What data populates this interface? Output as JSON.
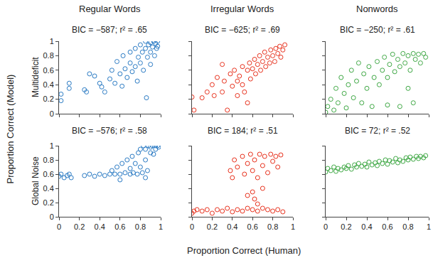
{
  "column_titles": [
    "Regular Words",
    "Irregular Words",
    "Nonwords"
  ],
  "row_titles": [
    "Multideficit",
    "Global Noise"
  ],
  "xlabel": "Proportion Correct (Human)",
  "ylabel": "Proportion Correct (Model)",
  "chart_data": [
    {
      "type": "scatter",
      "title": "BIC = −587; r² = .65",
      "color": "#2b7bc4",
      "marker": "circle-open",
      "tick_labels": "y",
      "xlim": [
        0,
        1
      ],
      "ylim": [
        0,
        1
      ],
      "xticks": [
        0,
        0.2,
        0.4,
        0.6,
        0.8,
        1
      ],
      "yticks": [
        0,
        0.2,
        0.4,
        0.6,
        0.8,
        1
      ],
      "x": [
        0.02,
        0.02,
        0.1,
        0.1,
        0.25,
        0.27,
        0.3,
        0.35,
        0.4,
        0.42,
        0.45,
        0.5,
        0.52,
        0.55,
        0.57,
        0.6,
        0.62,
        0.63,
        0.65,
        0.67,
        0.7,
        0.7,
        0.72,
        0.75,
        0.75,
        0.77,
        0.78,
        0.8,
        0.8,
        0.82,
        0.83,
        0.85,
        0.85,
        0.86,
        0.87,
        0.88,
        0.9,
        0.9,
        0.9,
        0.92,
        0.93,
        0.94,
        0.95,
        0.96,
        0.97,
        0.97
      ],
      "values": [
        0.27,
        0.18,
        0.42,
        0.35,
        0.33,
        0.3,
        0.55,
        0.52,
        0.42,
        0.37,
        0.3,
        0.48,
        0.6,
        0.42,
        0.72,
        0.55,
        0.38,
        0.8,
        0.62,
        0.5,
        0.7,
        0.85,
        0.58,
        0.9,
        0.65,
        0.45,
        0.78,
        0.95,
        0.7,
        0.85,
        0.6,
        1,
        0.9,
        0.22,
        0.78,
        0.95,
        0.98,
        0.85,
        0.68,
        0.92,
        1,
        0.8,
        0.97,
        0.9,
        1,
        0.93
      ]
    },
    {
      "type": "scatter",
      "title": "BIC = −625; r² = .69",
      "color": "#e8321e",
      "marker": "circle-open",
      "tick_labels": false,
      "xlim": [
        0,
        1
      ],
      "ylim": [
        0,
        1
      ],
      "xticks": [
        0,
        0.2,
        0.4,
        0.6,
        0.8,
        1
      ],
      "yticks": [
        0,
        0.2,
        0.4,
        0.6,
        0.8,
        1
      ],
      "x": [
        0,
        0.02,
        0.1,
        0.15,
        0.2,
        0.22,
        0.25,
        0.3,
        0.32,
        0.35,
        0.38,
        0.4,
        0.42,
        0.45,
        0.47,
        0.5,
        0.5,
        0.52,
        0.55,
        0.57,
        0.58,
        0.6,
        0.62,
        0.63,
        0.65,
        0.67,
        0.68,
        0.7,
        0.72,
        0.73,
        0.75,
        0.77,
        0.78,
        0.8,
        0.82,
        0.83,
        0.85,
        0.87,
        0.88,
        0.9,
        0.92,
        0.3,
        0.55,
        0.45
      ],
      "values": [
        0.23,
        0.05,
        0.22,
        0.3,
        0.4,
        0.25,
        0.5,
        0.3,
        0.45,
        0.05,
        0.55,
        0.38,
        0.6,
        0.45,
        0.52,
        0.65,
        0.4,
        0.3,
        0.6,
        0.7,
        0.48,
        0.62,
        0.75,
        0.55,
        0.68,
        0.8,
        0.6,
        0.72,
        0.85,
        0.65,
        0.78,
        0.7,
        0.88,
        0.8,
        0.72,
        0.9,
        0.83,
        0.93,
        0.78,
        0.88,
        0.95,
        0.68,
        0.15,
        0.25
      ]
    },
    {
      "type": "scatter",
      "title": "BIC = −250; r² = .61",
      "color": "#3fa845",
      "marker": "circle-open",
      "tick_labels": false,
      "xlim": [
        0,
        1
      ],
      "ylim": [
        0,
        1
      ],
      "xticks": [
        0,
        0.2,
        0.4,
        0.6,
        0.8,
        1
      ],
      "yticks": [
        0,
        0.2,
        0.4,
        0.6,
        0.8,
        1
      ],
      "x": [
        0,
        0.02,
        0.05,
        0.08,
        0.1,
        0.12,
        0.15,
        0.18,
        0.2,
        0.22,
        0.25,
        0.27,
        0.3,
        0.32,
        0.35,
        0.37,
        0.4,
        0.42,
        0.45,
        0.47,
        0.5,
        0.52,
        0.55,
        0.57,
        0.6,
        0.6,
        0.62,
        0.65,
        0.67,
        0.7,
        0.72,
        0.72,
        0.75,
        0.77,
        0.8,
        0.82,
        0.85,
        0.87,
        0.9,
        0.92,
        0.95,
        0.97,
        0.85,
        0.8
      ],
      "values": [
        0.02,
        0.1,
        0.2,
        0.05,
        0.35,
        0.15,
        0.5,
        0.28,
        0.08,
        0.4,
        0.6,
        0.22,
        0.45,
        0.7,
        0.15,
        0.55,
        0.35,
        0.65,
        0.1,
        0.5,
        0.72,
        0.4,
        0.6,
        0.78,
        0.12,
        0.5,
        0.68,
        0.82,
        0.58,
        0.75,
        0.1,
        0.65,
        0.83,
        0.7,
        0.8,
        0.6,
        0.83,
        0.75,
        0.82,
        0.7,
        0.83,
        0.78,
        0.15,
        0.35
      ]
    },
    {
      "type": "scatter",
      "title": "BIC = −576; r² = .58",
      "color": "#2b7bc4",
      "marker": "circle-open",
      "tick_labels": true,
      "xlim": [
        0,
        1
      ],
      "ylim": [
        0,
        1
      ],
      "xticks": [
        0,
        0.2,
        0.4,
        0.6,
        0.8,
        1
      ],
      "yticks": [
        0,
        0.2,
        0.4,
        0.6,
        0.8,
        1
      ],
      "x": [
        0,
        0.02,
        0.05,
        0.08,
        0.1,
        0.12,
        0.25,
        0.3,
        0.35,
        0.4,
        0.45,
        0.5,
        0.52,
        0.55,
        0.57,
        0.6,
        0.62,
        0.65,
        0.67,
        0.7,
        0.7,
        0.72,
        0.73,
        0.75,
        0.77,
        0.78,
        0.8,
        0.8,
        0.82,
        0.83,
        0.85,
        0.85,
        0.87,
        0.88,
        0.9,
        0.9,
        0.92,
        0.93,
        0.95,
        0.95,
        0.97,
        0.98,
        0.6,
        0.85
      ],
      "values": [
        0.57,
        0.6,
        0.55,
        0.58,
        0.6,
        0.55,
        0.58,
        0.6,
        0.57,
        0.6,
        0.58,
        0.6,
        0.65,
        0.6,
        0.7,
        0.6,
        0.75,
        0.62,
        0.8,
        0.6,
        0.68,
        0.85,
        0.62,
        0.75,
        0.6,
        0.9,
        0.7,
        0.95,
        0.62,
        1,
        0.8,
        0.95,
        0.65,
        1,
        0.9,
        0.98,
        1,
        0.88,
        1,
        0.95,
        1,
        0.98,
        0.52,
        0.55
      ]
    },
    {
      "type": "scatter",
      "title": "BIC = 184; r² = .51",
      "color": "#e8321e",
      "marker": "circle-open",
      "tick_labels": "x",
      "xlim": [
        0,
        1
      ],
      "ylim": [
        0,
        1
      ],
      "xticks": [
        0,
        0.2,
        0.4,
        0.6,
        0.8,
        1
      ],
      "yticks": [
        0,
        0.2,
        0.4,
        0.6,
        0.8,
        1
      ],
      "x": [
        0,
        0.02,
        0.05,
        0.1,
        0.15,
        0.2,
        0.25,
        0.3,
        0.35,
        0.4,
        0.45,
        0.5,
        0.55,
        0.6,
        0.65,
        0.7,
        0.75,
        0.8,
        0.85,
        0.9,
        0.38,
        0.4,
        0.42,
        0.45,
        0.5,
        0.52,
        0.55,
        0.58,
        0.6,
        0.62,
        0.65,
        0.67,
        0.7,
        0.72,
        0.75,
        0.78,
        0.8,
        0.83,
        0.85,
        0.88,
        0.6,
        0.62,
        0.55,
        0.7,
        0.65
      ],
      "values": [
        0.05,
        0.08,
        0.1,
        0.08,
        0.1,
        0.05,
        0.1,
        0.08,
        0.12,
        0.07,
        0.1,
        0.08,
        0.12,
        0.1,
        0.08,
        0.12,
        0.1,
        0.08,
        0.1,
        0.07,
        0.65,
        0.55,
        0.8,
        0.7,
        0.85,
        0.6,
        0.75,
        0.88,
        0.65,
        0.8,
        0.55,
        0.88,
        0.72,
        0.85,
        0.62,
        0.88,
        0.78,
        0.85,
        0.7,
        0.87,
        0.35,
        0.25,
        0.3,
        0.4,
        0.18
      ]
    },
    {
      "type": "scatter",
      "title": "BIC = 72; r² = .52",
      "color": "#3fa845",
      "marker": "circle-open",
      "tick_labels": "x",
      "xlim": [
        0,
        1
      ],
      "ylim": [
        0,
        1
      ],
      "xticks": [
        0,
        0.2,
        0.4,
        0.6,
        0.8,
        1
      ],
      "yticks": [
        0,
        0.2,
        0.4,
        0.6,
        0.8,
        1
      ],
      "x": [
        0,
        0.02,
        0.05,
        0.08,
        0.1,
        0.12,
        0.15,
        0.18,
        0.2,
        0.22,
        0.25,
        0.28,
        0.3,
        0.32,
        0.35,
        0.38,
        0.4,
        0.42,
        0.45,
        0.48,
        0.5,
        0.52,
        0.55,
        0.58,
        0.6,
        0.62,
        0.65,
        0.68,
        0.7,
        0.72,
        0.75,
        0.78,
        0.8,
        0.82,
        0.85,
        0.88,
        0.9,
        0.92,
        0.95,
        0.97
      ],
      "values": [
        0.63,
        0.68,
        0.65,
        0.7,
        0.64,
        0.68,
        0.66,
        0.7,
        0.68,
        0.72,
        0.67,
        0.73,
        0.7,
        0.75,
        0.71,
        0.74,
        0.7,
        0.77,
        0.73,
        0.76,
        0.72,
        0.78,
        0.75,
        0.8,
        0.74,
        0.79,
        0.77,
        0.82,
        0.76,
        0.8,
        0.78,
        0.83,
        0.8,
        0.84,
        0.81,
        0.85,
        0.82,
        0.85,
        0.83,
        0.86
      ]
    }
  ]
}
